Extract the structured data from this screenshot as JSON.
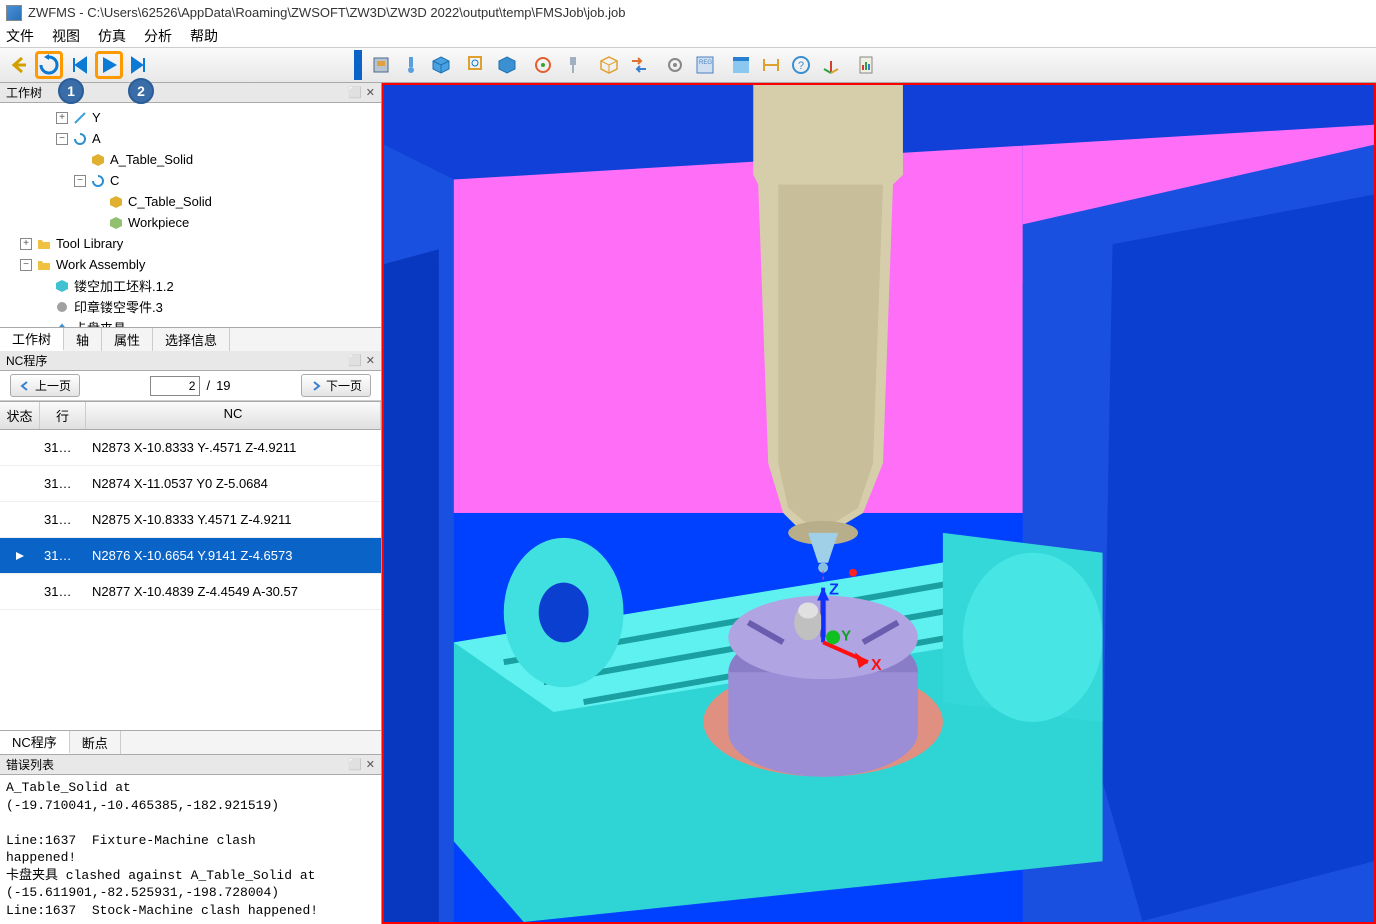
{
  "title": "ZWFMS - C:\\Users\\62526\\AppData\\Roaming\\ZWSOFT\\ZW3D\\ZW3D 2022\\output\\temp\\FMSJob\\job.job",
  "menu": {
    "file": "文件",
    "view": "视图",
    "sim": "仿真",
    "analyze": "分析",
    "help": "帮助"
  },
  "badges": {
    "b1": "1",
    "b2": "2"
  },
  "tree": {
    "title": "工作树",
    "items": {
      "y": "Y",
      "a": "A",
      "a_table": "A_Table_Solid",
      "c": "C",
      "c_table": "C_Table_Solid",
      "workpiece": "Workpiece",
      "tool_lib": "Tool Library",
      "work_asm": "Work Assembly",
      "stock": "镂空加工坯料.1.2",
      "part": "印章镂空零件.3",
      "fixture": "卡盘夹具"
    },
    "tabs": {
      "tree": "工作树",
      "axis": "轴",
      "attr": "属性",
      "sel": "选择信息"
    }
  },
  "nc": {
    "title": "NC程序",
    "prev": "上一页",
    "next": "下一页",
    "page_current": "2",
    "page_sep": "/",
    "page_total": "19",
    "cols": {
      "status": "状态",
      "line": "行",
      "code": "NC"
    },
    "rows": [
      {
        "status": "",
        "line": "31…",
        "code": "N2873 X-10.8333 Y-.4571 Z-4.9211"
      },
      {
        "status": "",
        "line": "31…",
        "code": "N2874 X-11.0537 Y0 Z-5.0684"
      },
      {
        "status": "",
        "line": "31…",
        "code": "N2875 X-10.8333 Y.4571 Z-4.9211"
      },
      {
        "status": "▶",
        "line": "31…",
        "code": "N2876 X-10.6654 Y.9141 Z-4.6573",
        "selected": true
      },
      {
        "status": "",
        "line": "31…",
        "code": "N2877 X-10.4839 Z-4.4549 A-30.57"
      }
    ],
    "tabs": {
      "nc": "NC程序",
      "bp": "断点"
    }
  },
  "err": {
    "title": "错误列表",
    "text": "A_Table_Solid at\n(-19.710041,-10.465385,-182.921519)\n\nLine:1637  Fixture-Machine clash\nhappened!\n卡盘夹具 clashed against A_Table_Solid at\n(-15.611901,-82.525931,-198.728004)\nLine:1637  Stock-Machine clash happened!"
  },
  "viewport": {
    "axis_x": "X",
    "axis_y": "Y",
    "axis_z": "Z",
    "colors": {
      "bg": "#0040ff",
      "pink": "#ff6ef7",
      "cyan_light": "#5ff5f5",
      "cyan_med": "#2fd0d0",
      "beige": "#d6ceaa",
      "beige_dark": "#c0b890",
      "purple": "#9b8dd6",
      "salmon": "#e09080"
    }
  }
}
